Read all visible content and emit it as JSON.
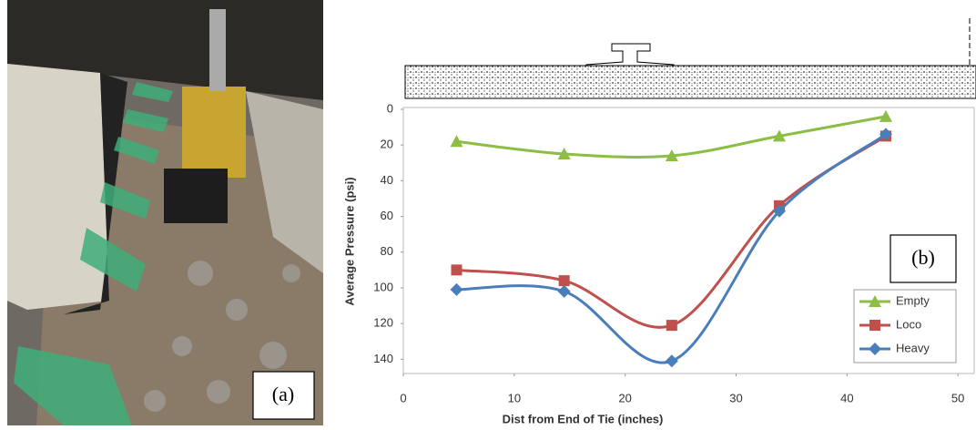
{
  "photo_label": "(a)",
  "chart_data": {
    "type": "line",
    "panel_label": "(b)",
    "x_label": "Dist from End of Tie (inches)",
    "y_label": "Average Pressure (psi)",
    "x": [
      4.8,
      14.5,
      24.2,
      33.9,
      43.5
    ],
    "series": [
      {
        "name": "Empty",
        "color": "#8cbd45",
        "marker": "triangle",
        "values": [
          18,
          25,
          26,
          15,
          4
        ]
      },
      {
        "name": "Loco",
        "color": "#c0504d",
        "marker": "square",
        "values": [
          90,
          96,
          121,
          54,
          15
        ]
      },
      {
        "name": "Heavy",
        "color": "#4a7ebb",
        "marker": "diamond",
        "values": [
          101,
          102,
          141,
          57,
          14
        ]
      }
    ],
    "xlim": [
      0,
      51.3
    ],
    "xticks": [
      0,
      10,
      20,
      30,
      40,
      50
    ],
    "ylim": [
      0,
      148
    ],
    "yticks": [
      0,
      20,
      40,
      60,
      80,
      100,
      120,
      140
    ],
    "y_inverted": true,
    "smooth": true,
    "legend": "lower-right"
  }
}
